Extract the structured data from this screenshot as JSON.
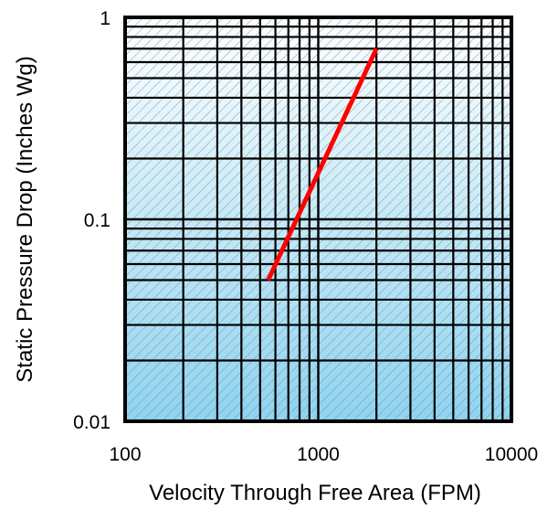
{
  "chart_data": {
    "type": "line",
    "title": "",
    "xlabel": "Velocity Through Free Area (FPM)",
    "ylabel": "Static Pressure Drop (Inches Wg)",
    "xscale": "log",
    "yscale": "log",
    "xlim": [
      100,
      10000
    ],
    "ylim": [
      0.01,
      1
    ],
    "x_ticks": [
      {
        "value": 100,
        "label": "100"
      },
      {
        "value": 1000,
        "label": "1000"
      },
      {
        "value": 10000,
        "label": "10000"
      }
    ],
    "y_ticks": [
      {
        "value": 0.01,
        "label": "0.01"
      },
      {
        "value": 0.1,
        "label": "0.1"
      },
      {
        "value": 1,
        "label": "1"
      }
    ],
    "grid": true,
    "legend": "none",
    "background": "light-blue-gradient-hatched",
    "series": [
      {
        "color": "#ff0000",
        "x": [
          550,
          2000
        ],
        "y": [
          0.05,
          0.7
        ]
      }
    ]
  }
}
